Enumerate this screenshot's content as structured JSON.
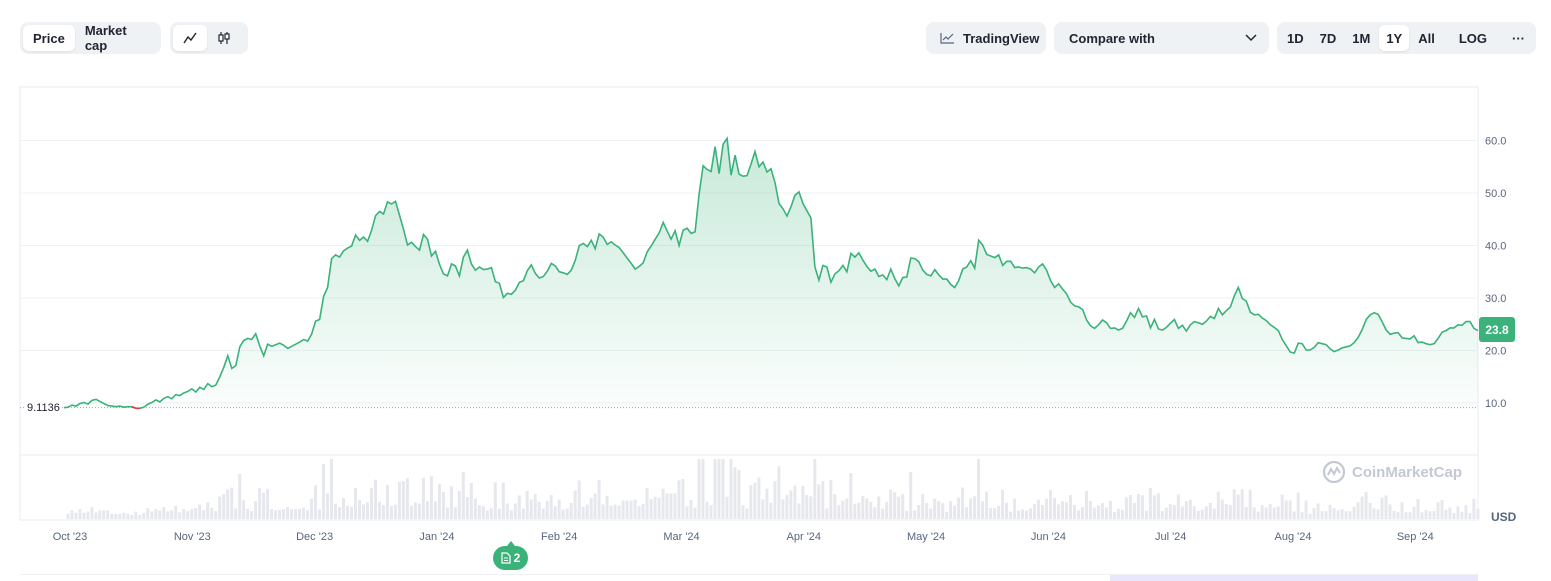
{
  "toolbar": {
    "type_options": [
      "Price",
      "Market cap"
    ],
    "type_active": "Price",
    "view_icons": [
      "line-chart-icon",
      "candlestick-icon"
    ],
    "tradingview_label": "TradingView",
    "compare_label": "Compare with",
    "ranges": [
      "1D",
      "7D",
      "1M",
      "1Y",
      "All",
      "LOG"
    ],
    "range_active": "1Y",
    "more_label": "···"
  },
  "chart_data": {
    "type": "area",
    "y_currency": "USD",
    "start_price_label": "9.1136",
    "current_price_label": "23.8",
    "y_ticks": [
      "10.0",
      "20.0",
      "30.0",
      "40.0",
      "50.0",
      "60.0"
    ],
    "ylim": [
      0,
      70
    ],
    "x_labels": [
      "Oct '23",
      "Nov '23",
      "Dec '23",
      "Jan '24",
      "Feb '24",
      "Mar '24",
      "Apr '24",
      "May '24",
      "Jun '24",
      "Jul '24",
      "Aug '24",
      "Sep '24"
    ],
    "series": [
      {
        "values": [
          9.1,
          9.2,
          9.6,
          9.4,
          9.9,
          10.1,
          9.8,
          10.5,
          10.7,
          10.3,
          9.9,
          9.5,
          9.4,
          9.3,
          9.4,
          9.2,
          9.3,
          9.3,
          9.0,
          9.0,
          9.2,
          9.8,
          10.1,
          10.6,
          10.2,
          10.9,
          11.2,
          10.8,
          11.6,
          11.4,
          11.9,
          12.2,
          12.7,
          12.1,
          13.0,
          12.6,
          13.7,
          13.1,
          13.4,
          15.0,
          16.8,
          19.0,
          16.6,
          17.1,
          20.7,
          21.9,
          22.3,
          22.1,
          23.2,
          20.9,
          19.0,
          21.2,
          20.8,
          21.1,
          21.4,
          21.0,
          20.4,
          20.8,
          21.2,
          21.6,
          22.1,
          21.8,
          23.1,
          25.6,
          25.9,
          30.3,
          32.0,
          37.5,
          38.2,
          37.8,
          39.0,
          39.5,
          39.9,
          42.0,
          41.0,
          41.6,
          40.8,
          42.9,
          45.7,
          46.5,
          46.0,
          48.3,
          47.9,
          48.4,
          45.8,
          43.1,
          40.1,
          40.6,
          39.8,
          39.1,
          42.1,
          41.2,
          38.0,
          38.9,
          36.4,
          34.6,
          34.2,
          36.5,
          36.1,
          34.2,
          37.8,
          39.1,
          36.5,
          35.3,
          35.9,
          35.4,
          35.5,
          35.8,
          33.1,
          32.8,
          30.1,
          30.9,
          30.7,
          31.5,
          33.0,
          33.3,
          35.2,
          36.3,
          34.7,
          33.8,
          34.1,
          35.1,
          36.6,
          36.1,
          35.0,
          34.8,
          34.5,
          35.3,
          37.2,
          40.0,
          40.4,
          39.8,
          41.0,
          39.4,
          42.2,
          41.6,
          40.2,
          40.7,
          40.1,
          39.6,
          38.6,
          37.6,
          36.6,
          35.5,
          36.0,
          36.7,
          38.8,
          39.9,
          41.2,
          42.4,
          44.4,
          42.8,
          41.2,
          42.8,
          40.0,
          42.9,
          43.3,
          42.3,
          42.6,
          49.8,
          55.2,
          54.5,
          54.1,
          58.8,
          53.7,
          59.3,
          60.4,
          53.4,
          57.2,
          53.6,
          53.2,
          53.3,
          55.5,
          57.9,
          55.0,
          55.9,
          54.0,
          54.6,
          52.0,
          48.0,
          47.0,
          45.6,
          47.4,
          49.6,
          50.2,
          48.0,
          46.6,
          45.3,
          35.9,
          33.4,
          36.2,
          35.9,
          33.0,
          34.6,
          35.2,
          36.2,
          35.0,
          38.5,
          37.8,
          38.6,
          37.2,
          36.0,
          35.1,
          35.5,
          34.1,
          34.4,
          33.5,
          35.5,
          33.7,
          32.3,
          33.9,
          34.0,
          37.6,
          37.5,
          36.9,
          35.3,
          34.5,
          34.2,
          35.4,
          34.4,
          33.6,
          33.6,
          32.6,
          32.0,
          33.3,
          35.5,
          35.9,
          37.1,
          35.7,
          41.0,
          40.1,
          38.3,
          38.0,
          37.7,
          38.2,
          36.2,
          37.0,
          37.0,
          35.8,
          35.9,
          35.7,
          35.8,
          35.5,
          34.8,
          35.9,
          36.5,
          35.3,
          33.3,
          32.0,
          32.7,
          31.7,
          30.8,
          29.2,
          28.5,
          28.3,
          27.8,
          25.8,
          24.7,
          24.2,
          24.9,
          25.8,
          25.3,
          24.2,
          24.3,
          23.9,
          24.2,
          25.6,
          27.2,
          26.3,
          28.0,
          26.4,
          26.6,
          24.3,
          25.9,
          24.1,
          23.9,
          24.4,
          25.2,
          25.9,
          24.2,
          24.8,
          23.7,
          24.9,
          25.5,
          25.3,
          25.0,
          25.6,
          26.5,
          26.1,
          28.0,
          26.8,
          27.6,
          28.3,
          30.4,
          32.0,
          29.9,
          29.4,
          27.3,
          26.8,
          26.9,
          26.2,
          25.7,
          24.9,
          24.4,
          23.8,
          22.1,
          20.9,
          19.7,
          19.5,
          21.4,
          21.3,
          20.1,
          20.1,
          20.6,
          21.5,
          21.3,
          21.1,
          20.3,
          19.8,
          20.1,
          20.5,
          20.7,
          20.9,
          21.5,
          22.5,
          24.0,
          25.9,
          26.8,
          27.2,
          26.9,
          25.5,
          23.9,
          23.1,
          23.3,
          23.4,
          22.4,
          22.3,
          22.2,
          22.8,
          21.5,
          21.6,
          21.3,
          21.1,
          21.3,
          22.3,
          23.5,
          23.8,
          24.3,
          24.3,
          24.9,
          24.8,
          25.5,
          25.5,
          24.2,
          23.8
        ]
      }
    ]
  },
  "events_badge": {
    "count": "2"
  },
  "watermark": {
    "brand": "CoinMarketCap"
  },
  "colors": {
    "up": "#3ab27a",
    "down": "#ea3943",
    "grid": "#eff2f5",
    "volume": "#e6e8ee"
  }
}
